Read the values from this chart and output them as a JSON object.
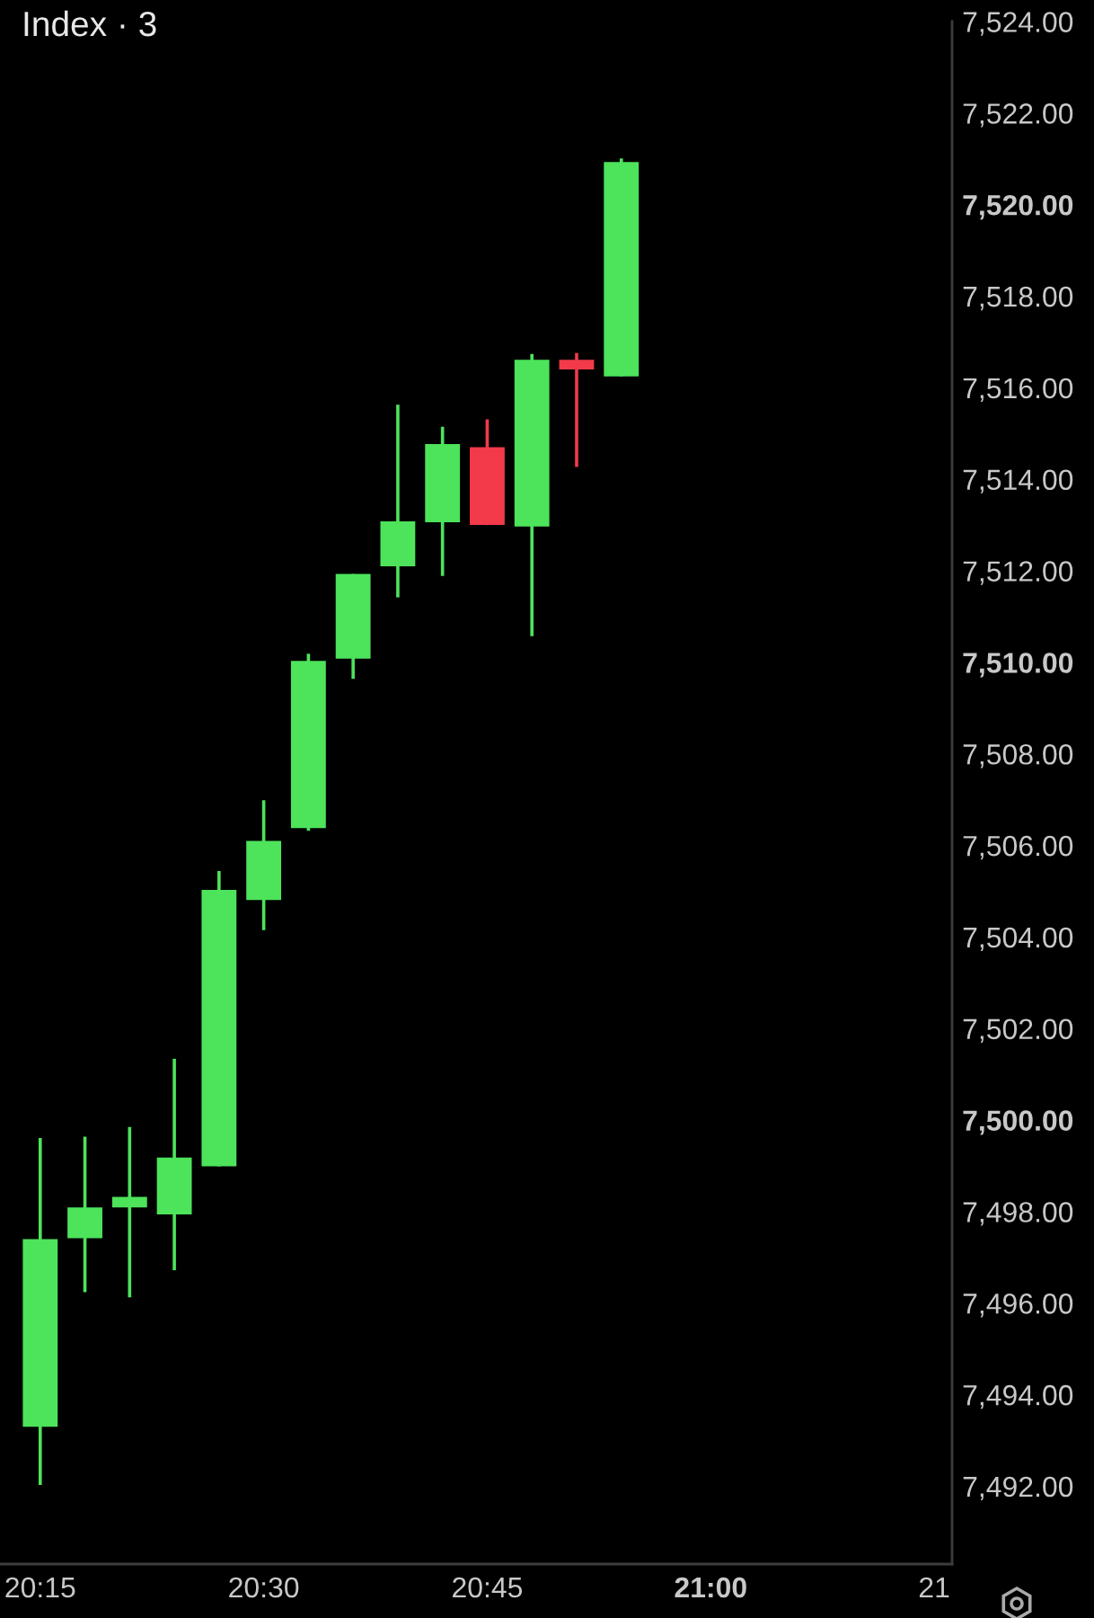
{
  "chart_data": {
    "type": "candlestick",
    "title": "Index · 3",
    "x": [
      20.25,
      20.3,
      20.35,
      20.4,
      20.45,
      20.5,
      20.55,
      20.6,
      20.65,
      20.7,
      20.75,
      20.8,
      20.85,
      20.9
    ],
    "ohlc": [
      [
        7493.3,
        7499.61,
        7492.03,
        7497.4
      ],
      [
        7497.42,
        7499.64,
        7496.24,
        7498.09
      ],
      [
        7498.09,
        7499.85,
        7496.13,
        7498.32
      ],
      [
        7497.94,
        7501.34,
        7496.72,
        7499.18
      ],
      [
        7498.99,
        7505.44,
        7498.99,
        7505.03
      ],
      [
        7504.81,
        7506.99,
        7504.15,
        7506.1
      ],
      [
        7506.38,
        7510.19,
        7506.32,
        7510.03
      ],
      [
        7510.08,
        7511.93,
        7509.64,
        7511.93
      ],
      [
        7512.1,
        7515.63,
        7511.42,
        7513.08
      ],
      [
        7513.06,
        7515.15,
        7511.89,
        7514.77
      ],
      [
        7514.7,
        7515.31,
        7513.0,
        7513.0
      ],
      [
        7512.97,
        7516.74,
        7510.57,
        7516.61
      ],
      [
        7516.61,
        7516.76,
        7514.27,
        7516.4
      ],
      [
        7516.25,
        7521.01,
        7516.25,
        7520.93
      ]
    ],
    "colors": [
      "#4de35b",
      "#4de35b",
      "#4de35b",
      "#4de35b",
      "#4de35b",
      "#4de35b",
      "#4de35b",
      "#4de35b",
      "#4de35b",
      "#4de35b",
      "#f23a4a",
      "#4de35b",
      "#f23a4a",
      "#4de35b"
    ],
    "xlim": [
      20.205,
      21.27
    ],
    "xticks": [
      {
        "value": 20.25,
        "label": "20:15"
      },
      {
        "value": 20.5,
        "label": "20:30"
      },
      {
        "value": 20.75,
        "label": "20:45"
      },
      {
        "value": 21,
        "label": "21:00"
      },
      {
        "value": 21.25,
        "label": "21"
      }
    ],
    "ylim": [
      7490.3,
      7524
    ],
    "yticks": [
      {
        "value": 7492,
        "label": "7,492.00"
      },
      {
        "value": 7494,
        "label": "7,494.00"
      },
      {
        "value": 7496,
        "label": "7,496.00"
      },
      {
        "value": 7498,
        "label": "7,498.00"
      },
      {
        "value": 7500,
        "label": "7,500.00"
      },
      {
        "value": 7502,
        "label": "7,502.00"
      },
      {
        "value": 7504,
        "label": "7,504.00"
      },
      {
        "value": 7506,
        "label": "7,506.00"
      },
      {
        "value": 7508,
        "label": "7,508.00"
      },
      {
        "value": 7510,
        "label": "7,510.00"
      },
      {
        "value": 7512,
        "label": "7,512.00"
      },
      {
        "value": 7514,
        "label": "7,514.00"
      },
      {
        "value": 7516,
        "label": "7,516.00"
      },
      {
        "value": 7518,
        "label": "7,518.00"
      },
      {
        "value": 7520,
        "label": "7,520.00"
      },
      {
        "value": 7522,
        "label": "7,522.00"
      },
      {
        "value": 7524,
        "label": "7,524.00"
      }
    ]
  }
}
